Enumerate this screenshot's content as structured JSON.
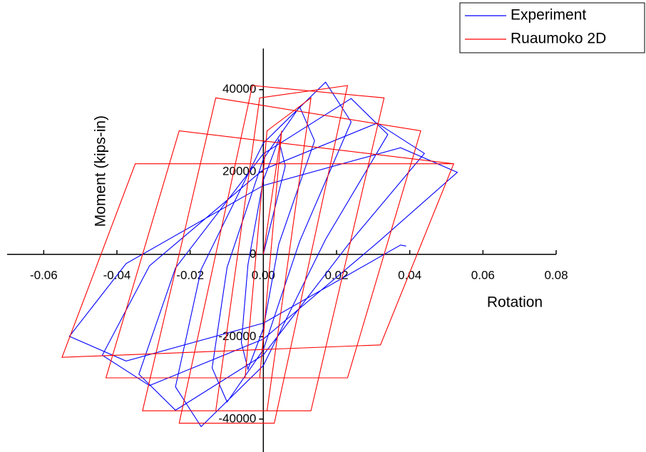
{
  "chart_data": {
    "type": "line",
    "x_label": "Rotation",
    "y_label": "Moment (kips-in)",
    "xlim": [
      -0.07,
      0.08
    ],
    "ylim": [
      -48000,
      50000
    ],
    "xticks": [
      -0.06,
      -0.04,
      -0.02,
      {
        "value": 0,
        "label": "0.00"
      },
      0.02,
      0.04,
      0.06,
      0.08
    ],
    "yticks": [
      -40000,
      -20000,
      0,
      20000,
      40000
    ],
    "legend": "top-right",
    "series": [
      {
        "name": "Experiment",
        "color": "#0000ff",
        "x": [
          0,
          0.006,
          0.0042,
          0,
          -0.0042,
          -0.006,
          -0.0042,
          0,
          0.0042,
          0.014,
          0.0099,
          0,
          -0.0099,
          -0.014,
          -0.0099,
          0,
          0.0099,
          0.024,
          0.017,
          0,
          -0.017,
          -0.024,
          -0.017,
          0,
          0.017,
          0.034,
          0.024,
          0,
          -0.024,
          -0.034,
          -0.024,
          0,
          0.024,
          0.044,
          0.0311,
          0,
          -0.0311,
          -0.044,
          -0.0311,
          0,
          0.0311,
          0.053,
          0.0375,
          0,
          -0.0375,
          -0.053,
          -0.0375,
          0,
          0.0375,
          0.039
        ],
        "values": [
          0,
          21450,
          27890,
          18000,
          -2440,
          -21450,
          -27890,
          -18000,
          2440,
          27580,
          35860,
          23150,
          -3130,
          -27580,
          -35860,
          -23150,
          3130,
          32170,
          41830,
          27010,
          -3650,
          -32170,
          -41830,
          -27010,
          3650,
          29110,
          37850,
          24430,
          -3310,
          -29110,
          -37850,
          -24430,
          3310,
          24510,
          31870,
          20580,
          -2780,
          -24510,
          -31870,
          -20580,
          2780,
          19920,
          25900,
          16720,
          -2260,
          -19920,
          -25900,
          -16720,
          2260,
          2000
        ]
      },
      {
        "name": "Ruaumoko 2D",
        "color": "#ff0000",
        "x": [
          0,
          0.005,
          -0.001,
          -0.005,
          0.001,
          0.013,
          0.001,
          -0.013,
          -0.001,
          0.023,
          0.003,
          -0.023,
          -0.003,
          0.033,
          0.013,
          -0.033,
          -0.013,
          0.043,
          0.023,
          -0.043,
          -0.023,
          0.052,
          0.032,
          -0.055,
          -0.035,
          0.052
        ],
        "values": [
          0,
          30000,
          -30000,
          -30000,
          30000,
          38000,
          -38000,
          -38000,
          38000,
          41000,
          -41000,
          -41000,
          41000,
          38000,
          -38000,
          -38000,
          38000,
          30000,
          -30000,
          -30000,
          30000,
          22000,
          -22000,
          -25000,
          22000,
          22000
        ]
      }
    ]
  }
}
